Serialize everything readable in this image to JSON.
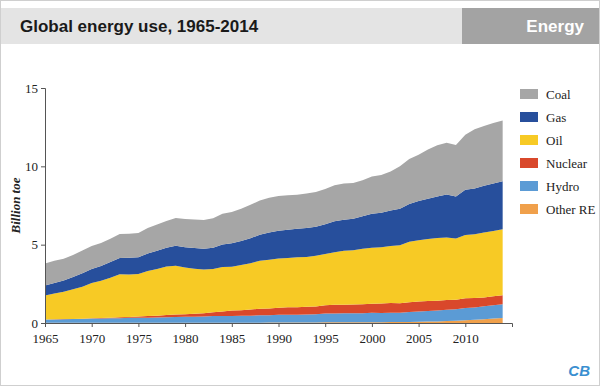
{
  "chart_data": {
    "type": "area",
    "title": "Global energy use, 1965-2014",
    "annotations": [
      "Energy",
      "CB"
    ],
    "y_label": "Billion toe",
    "stacked": true,
    "grid": false,
    "legend": "right",
    "x": [
      1965,
      1966,
      1967,
      1968,
      1969,
      1970,
      1971,
      1972,
      1973,
      1974,
      1975,
      1976,
      1977,
      1978,
      1979,
      1980,
      1981,
      1982,
      1983,
      1984,
      1985,
      1986,
      1987,
      1988,
      1989,
      1990,
      1991,
      1992,
      1993,
      1994,
      1995,
      1996,
      1997,
      1998,
      1999,
      2000,
      2001,
      2002,
      2003,
      2004,
      2005,
      2006,
      2007,
      2008,
      2009,
      2010,
      2011,
      2012,
      2013,
      2014
    ],
    "xlim": [
      1965,
      2015
    ],
    "xticks": [
      1965,
      1970,
      1975,
      1980,
      1985,
      1990,
      1995,
      2000,
      2005,
      2010
    ],
    "ylim": [
      0,
      15
    ],
    "yticks": [
      0,
      5,
      10,
      15
    ],
    "series": [
      {
        "name": "Coal",
        "color": "#a6a6a6",
        "values": [
          1.4,
          1.42,
          1.38,
          1.41,
          1.45,
          1.47,
          1.46,
          1.48,
          1.53,
          1.53,
          1.56,
          1.62,
          1.67,
          1.71,
          1.78,
          1.8,
          1.82,
          1.84,
          1.89,
          1.96,
          2.0,
          2.06,
          2.13,
          2.18,
          2.21,
          2.22,
          2.19,
          2.18,
          2.2,
          2.21,
          2.25,
          2.3,
          2.31,
          2.28,
          2.3,
          2.37,
          2.4,
          2.49,
          2.7,
          2.87,
          2.95,
          3.14,
          3.26,
          3.3,
          3.29,
          3.52,
          3.77,
          3.81,
          3.87,
          3.88
        ]
      },
      {
        "name": "Gas",
        "color": "#274f9c",
        "values": [
          0.63,
          0.68,
          0.72,
          0.78,
          0.85,
          0.9,
          0.95,
          1.0,
          1.04,
          1.06,
          1.07,
          1.12,
          1.16,
          1.2,
          1.27,
          1.3,
          1.32,
          1.33,
          1.35,
          1.44,
          1.5,
          1.53,
          1.6,
          1.67,
          1.74,
          1.77,
          1.81,
          1.82,
          1.85,
          1.86,
          1.9,
          1.98,
          1.98,
          2.01,
          2.07,
          2.18,
          2.2,
          2.27,
          2.33,
          2.42,
          2.51,
          2.57,
          2.66,
          2.75,
          2.67,
          2.88,
          2.92,
          2.99,
          3.02,
          3.07
        ]
      },
      {
        "name": "Oil",
        "color": "#f7ca25",
        "values": [
          1.53,
          1.64,
          1.75,
          1.89,
          2.05,
          2.25,
          2.37,
          2.55,
          2.75,
          2.71,
          2.7,
          2.88,
          2.98,
          3.09,
          3.12,
          2.98,
          2.88,
          2.79,
          2.77,
          2.83,
          2.8,
          2.89,
          2.95,
          3.06,
          3.11,
          3.15,
          3.15,
          3.18,
          3.17,
          3.23,
          3.28,
          3.36,
          3.44,
          3.46,
          3.54,
          3.57,
          3.6,
          3.64,
          3.71,
          3.86,
          3.91,
          3.95,
          4.0,
          3.99,
          3.91,
          4.04,
          4.08,
          4.14,
          4.18,
          4.21
        ]
      },
      {
        "name": "Nuclear",
        "color": "#d9482b",
        "values": [
          0.01,
          0.01,
          0.01,
          0.01,
          0.01,
          0.02,
          0.03,
          0.04,
          0.05,
          0.06,
          0.09,
          0.1,
          0.12,
          0.14,
          0.15,
          0.16,
          0.19,
          0.21,
          0.24,
          0.29,
          0.34,
          0.36,
          0.39,
          0.42,
          0.43,
          0.45,
          0.47,
          0.48,
          0.49,
          0.5,
          0.53,
          0.55,
          0.55,
          0.56,
          0.57,
          0.58,
          0.6,
          0.61,
          0.6,
          0.62,
          0.63,
          0.64,
          0.62,
          0.62,
          0.61,
          0.63,
          0.6,
          0.56,
          0.56,
          0.57
        ]
      },
      {
        "name": "Hydro",
        "color": "#5b9bd5",
        "values": [
          0.21,
          0.22,
          0.23,
          0.24,
          0.25,
          0.27,
          0.28,
          0.29,
          0.3,
          0.32,
          0.32,
          0.33,
          0.34,
          0.36,
          0.38,
          0.39,
          0.39,
          0.4,
          0.42,
          0.43,
          0.43,
          0.44,
          0.45,
          0.47,
          0.47,
          0.49,
          0.5,
          0.5,
          0.52,
          0.53,
          0.56,
          0.57,
          0.58,
          0.58,
          0.59,
          0.6,
          0.59,
          0.6,
          0.6,
          0.63,
          0.66,
          0.68,
          0.7,
          0.73,
          0.74,
          0.78,
          0.79,
          0.83,
          0.86,
          0.88
        ]
      },
      {
        "name": "Other RE",
        "color": "#f0a04b",
        "values": [
          0.01,
          0.01,
          0.01,
          0.01,
          0.01,
          0.01,
          0.01,
          0.01,
          0.01,
          0.01,
          0.01,
          0.01,
          0.01,
          0.01,
          0.01,
          0.01,
          0.01,
          0.01,
          0.02,
          0.02,
          0.02,
          0.02,
          0.02,
          0.02,
          0.03,
          0.03,
          0.03,
          0.03,
          0.03,
          0.03,
          0.04,
          0.04,
          0.04,
          0.04,
          0.04,
          0.05,
          0.05,
          0.06,
          0.06,
          0.07,
          0.08,
          0.09,
          0.1,
          0.12,
          0.14,
          0.17,
          0.2,
          0.24,
          0.28,
          0.32
        ]
      }
    ]
  }
}
